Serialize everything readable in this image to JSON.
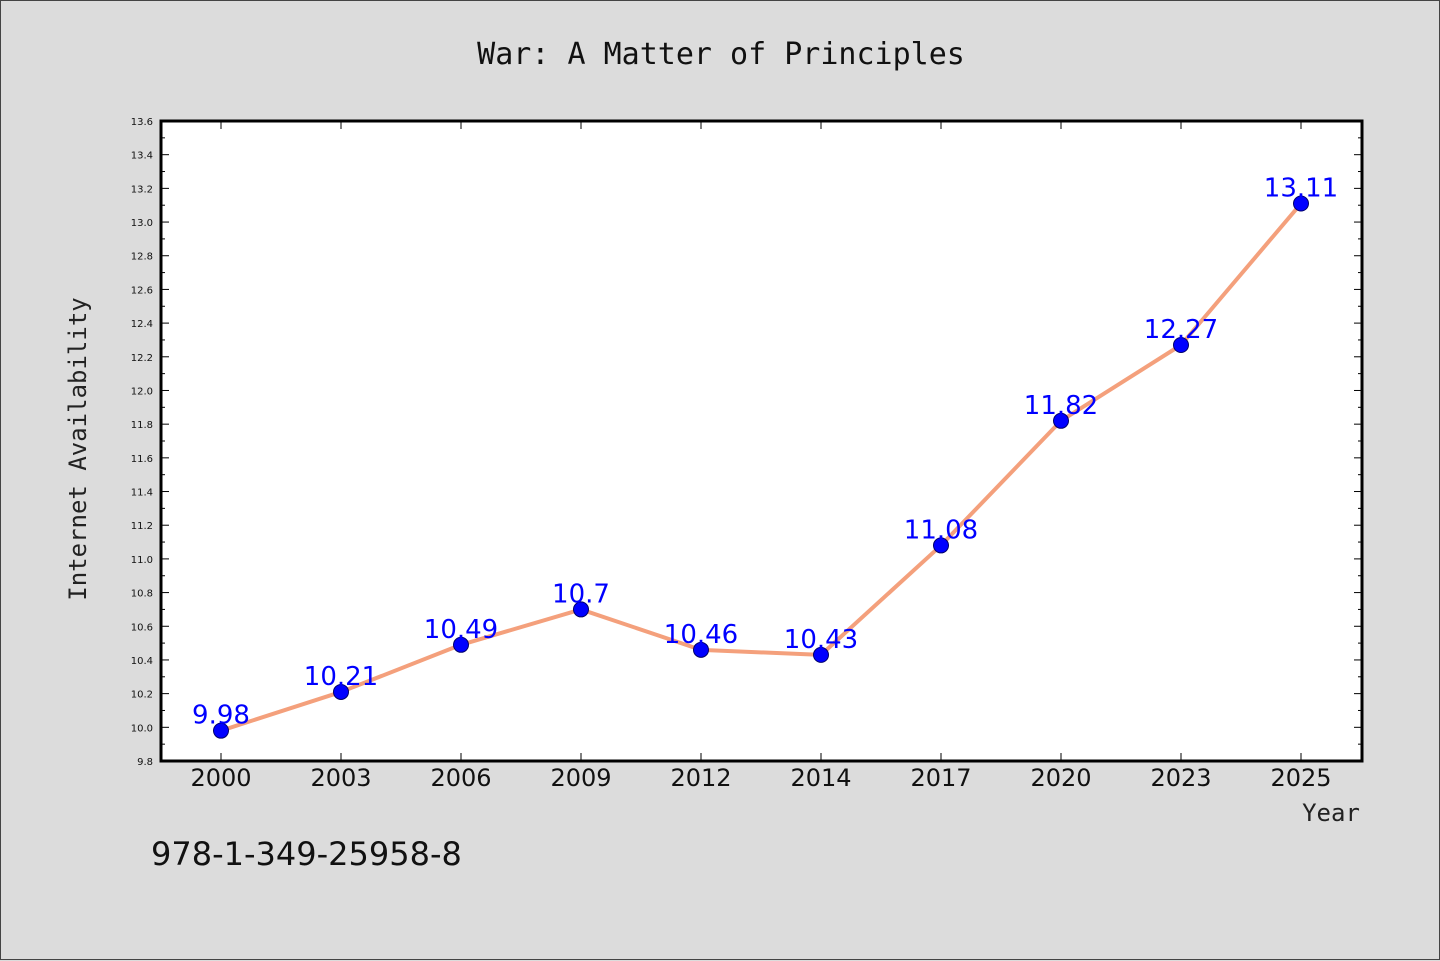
{
  "chart_data": {
    "type": "line",
    "title": "War: A Matter of Principles",
    "xlabel": "Year",
    "ylabel": "Internet Availability",
    "categories": [
      "2000",
      "2003",
      "2006",
      "2009",
      "2012",
      "2014",
      "2017",
      "2020",
      "2023",
      "2025"
    ],
    "series": [
      {
        "values": [
          9.98,
          10.21,
          10.49,
          10.7,
          10.46,
          10.43,
          11.08,
          11.82,
          12.27,
          13.11
        ],
        "data_labels": [
          "9.98",
          "10.21",
          "10.49",
          "10.7",
          "10.46",
          "10.43",
          "11.08",
          "11.82",
          "12.27",
          "13.11"
        ],
        "line_color": "#f4a07c",
        "marker_color": "#0000ff"
      }
    ],
    "ylim": [
      9.8,
      13.6
    ],
    "yticks": [
      "9.8",
      "10.0",
      "10.2",
      "10.4",
      "10.6",
      "10.8",
      "11.0",
      "11.2",
      "11.4",
      "11.6",
      "11.8",
      "12.0",
      "12.2",
      "12.4",
      "12.6",
      "12.8",
      "13.0",
      "13.2",
      "13.4",
      "13.6"
    ],
    "grid": false,
    "legend": "none"
  },
  "footnote": "978-1-349-25958-8",
  "colors": {
    "background": "#dcdcdc",
    "plot_background": "#ffffff",
    "label": "#0000ff",
    "line": "#f4a07c"
  }
}
